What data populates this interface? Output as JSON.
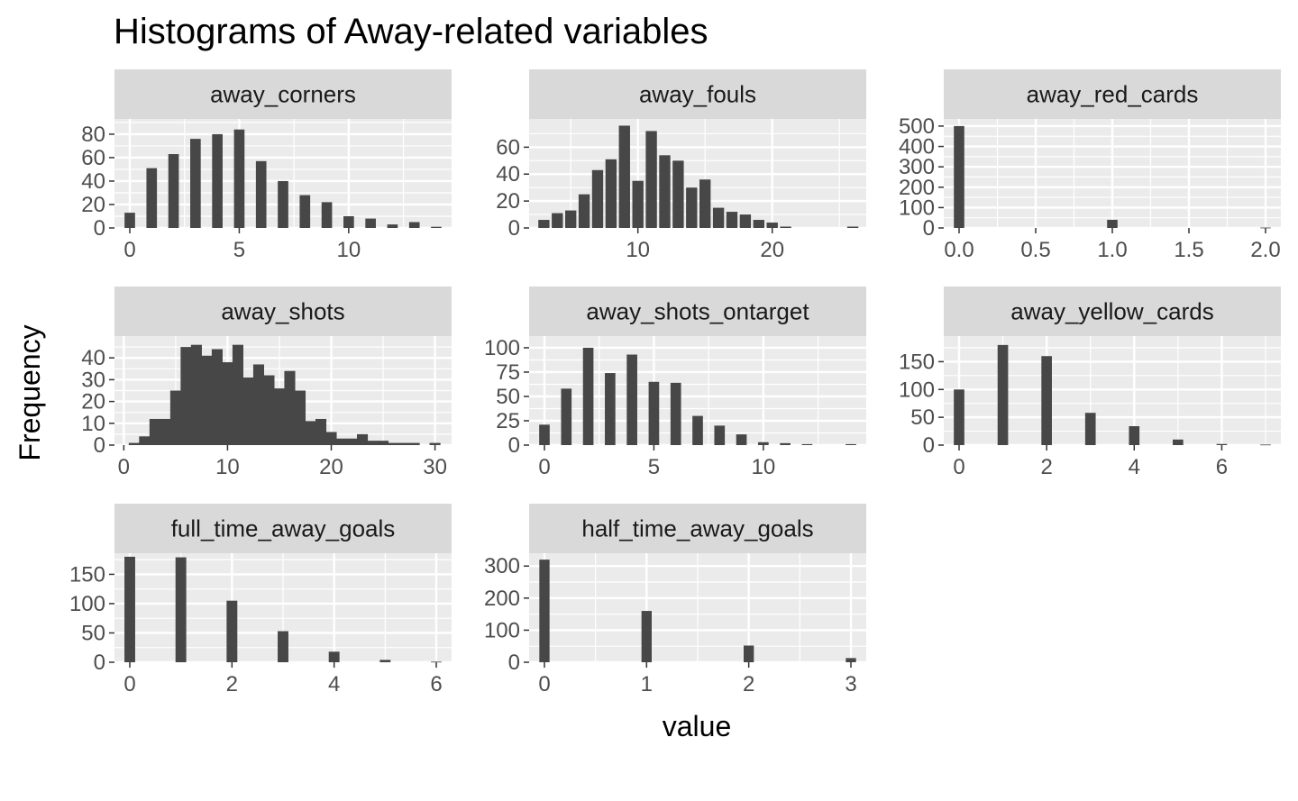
{
  "chart_data": {
    "type": "bar",
    "title": "Histograms of Away-related variables",
    "xlabel": "value",
    "ylabel": "Frequency",
    "colors": {
      "bar": "#474747",
      "panel_bg": "#ebebeb",
      "grid": "#ffffff",
      "strip_bg": "#d9d9d9",
      "strip_text": "#1a1a1a",
      "tick": "#4d4d4d"
    },
    "grid": true,
    "facets": [
      {
        "name": "away_corners",
        "xlim": [
          -0.7,
          14.7
        ],
        "ylim": [
          0,
          93
        ],
        "xticks": [
          0,
          5,
          10
        ],
        "xtick_labels": [
          "0",
          "5",
          "10"
        ],
        "yticks": [
          0,
          20,
          40,
          60,
          80
        ],
        "ytick_labels": [
          "0",
          "20",
          "40",
          "60",
          "80"
        ],
        "bar_width": 0.48,
        "bars": [
          {
            "x": 0,
            "y": 13
          },
          {
            "x": 1,
            "y": 51
          },
          {
            "x": 2,
            "y": 63
          },
          {
            "x": 3,
            "y": 76
          },
          {
            "x": 4,
            "y": 80
          },
          {
            "x": 5,
            "y": 84
          },
          {
            "x": 6,
            "y": 57
          },
          {
            "x": 7,
            "y": 40
          },
          {
            "x": 8,
            "y": 28
          },
          {
            "x": 9,
            "y": 22
          },
          {
            "x": 10,
            "y": 10
          },
          {
            "x": 11,
            "y": 8
          },
          {
            "x": 12,
            "y": 3
          },
          {
            "x": 13,
            "y": 5
          },
          {
            "x": 14,
            "y": 1
          }
        ]
      },
      {
        "name": "away_fouls",
        "xlim": [
          1.9,
          27.0
        ],
        "ylim": [
          0,
          81
        ],
        "xticks": [
          10,
          20
        ],
        "xtick_labels": [
          "10",
          "20"
        ],
        "yticks": [
          0,
          20,
          40,
          60
        ],
        "ytick_labels": [
          "0",
          "20",
          "40",
          "60"
        ],
        "bar_width": 0.83,
        "bars": [
          {
            "x": 3,
            "y": 6
          },
          {
            "x": 4,
            "y": 11
          },
          {
            "x": 5,
            "y": 13
          },
          {
            "x": 6,
            "y": 25
          },
          {
            "x": 7,
            "y": 43
          },
          {
            "x": 8,
            "y": 51
          },
          {
            "x": 9,
            "y": 76
          },
          {
            "x": 10,
            "y": 35
          },
          {
            "x": 11,
            "y": 72
          },
          {
            "x": 12,
            "y": 54
          },
          {
            "x": 13,
            "y": 50
          },
          {
            "x": 14,
            "y": 30
          },
          {
            "x": 15,
            "y": 36
          },
          {
            "x": 16,
            "y": 15
          },
          {
            "x": 17,
            "y": 12
          },
          {
            "x": 18,
            "y": 10
          },
          {
            "x": 19,
            "y": 6
          },
          {
            "x": 20,
            "y": 4
          },
          {
            "x": 21,
            "y": 1
          },
          {
            "x": 26,
            "y": 1
          }
        ]
      },
      {
        "name": "away_red_cards",
        "xlim": [
          -0.1,
          2.1
        ],
        "ylim": [
          0,
          535
        ],
        "xticks": [
          0.0,
          0.5,
          1.0,
          1.5,
          2.0
        ],
        "xtick_labels": [
          "0.0",
          "0.5",
          "1.0",
          "1.5",
          "2.0"
        ],
        "yticks": [
          0,
          100,
          200,
          300,
          400,
          500
        ],
        "ytick_labels": [
          "0",
          "100",
          "200",
          "300",
          "400",
          "500"
        ],
        "bar_width": 0.068,
        "bars": [
          {
            "x": 0,
            "y": 500
          },
          {
            "x": 1,
            "y": 40
          },
          {
            "x": 2,
            "y": 2
          }
        ]
      },
      {
        "name": "away_shots",
        "xlim": [
          -0.9,
          31.6
        ],
        "ylim": [
          0,
          50
        ],
        "xticks": [
          0,
          10,
          20,
          30
        ],
        "xtick_labels": [
          "0",
          "10",
          "20",
          "30"
        ],
        "yticks": [
          0,
          10,
          20,
          30,
          40
        ],
        "ytick_labels": [
          "0",
          "10",
          "20",
          "30",
          "40"
        ],
        "bar_width": 1.05,
        "bars": [
          {
            "x": 1,
            "y": 1
          },
          {
            "x": 2,
            "y": 4
          },
          {
            "x": 3,
            "y": 12
          },
          {
            "x": 4,
            "y": 12
          },
          {
            "x": 5,
            "y": 25
          },
          {
            "x": 6,
            "y": 45
          },
          {
            "x": 7,
            "y": 46
          },
          {
            "x": 8,
            "y": 41
          },
          {
            "x": 9,
            "y": 44
          },
          {
            "x": 10,
            "y": 38
          },
          {
            "x": 11,
            "y": 46
          },
          {
            "x": 12,
            "y": 31
          },
          {
            "x": 13,
            "y": 37
          },
          {
            "x": 14,
            "y": 32
          },
          {
            "x": 15,
            "y": 26
          },
          {
            "x": 16,
            "y": 34
          },
          {
            "x": 17,
            "y": 25
          },
          {
            "x": 18,
            "y": 11
          },
          {
            "x": 19,
            "y": 12
          },
          {
            "x": 20,
            "y": 6
          },
          {
            "x": 21,
            "y": 3
          },
          {
            "x": 22,
            "y": 3
          },
          {
            "x": 23,
            "y": 5
          },
          {
            "x": 24,
            "y": 2
          },
          {
            "x": 25,
            "y": 2
          },
          {
            "x": 26,
            "y": 1
          },
          {
            "x": 27,
            "y": 1
          },
          {
            "x": 28,
            "y": 1
          },
          {
            "x": 30,
            "y": 1
          }
        ]
      },
      {
        "name": "away_shots_ontarget",
        "xlim": [
          -0.7,
          14.7
        ],
        "ylim": [
          0,
          112
        ],
        "xticks": [
          0,
          5,
          10
        ],
        "xtick_labels": [
          "0",
          "5",
          "10"
        ],
        "yticks": [
          0,
          25,
          50,
          75,
          100
        ],
        "ytick_labels": [
          "0",
          "25",
          "50",
          "75",
          "100"
        ],
        "bar_width": 0.48,
        "bars": [
          {
            "x": 0,
            "y": 21
          },
          {
            "x": 1,
            "y": 58
          },
          {
            "x": 2,
            "y": 100
          },
          {
            "x": 3,
            "y": 74
          },
          {
            "x": 4,
            "y": 93
          },
          {
            "x": 5,
            "y": 65
          },
          {
            "x": 6,
            "y": 64
          },
          {
            "x": 7,
            "y": 30
          },
          {
            "x": 8,
            "y": 20
          },
          {
            "x": 9,
            "y": 11
          },
          {
            "x": 10,
            "y": 3
          },
          {
            "x": 11,
            "y": 2
          },
          {
            "x": 12,
            "y": 1
          },
          {
            "x": 14,
            "y": 1
          }
        ]
      },
      {
        "name": "away_yellow_cards",
        "xlim": [
          -0.35,
          7.35
        ],
        "ylim": [
          0,
          196
        ],
        "xticks": [
          0,
          2,
          4,
          6
        ],
        "xtick_labels": [
          "0",
          "2",
          "4",
          "6"
        ],
        "yticks": [
          0,
          50,
          100,
          150
        ],
        "ytick_labels": [
          "0",
          "50",
          "100",
          "150"
        ],
        "bar_width": 0.24,
        "bars": [
          {
            "x": 0,
            "y": 100
          },
          {
            "x": 1,
            "y": 180
          },
          {
            "x": 2,
            "y": 160
          },
          {
            "x": 3,
            "y": 58
          },
          {
            "x": 4,
            "y": 34
          },
          {
            "x": 5,
            "y": 10
          },
          {
            "x": 6,
            "y": 2
          },
          {
            "x": 7,
            "y": 1
          }
        ]
      },
      {
        "name": "full_time_away_goals",
        "xlim": [
          -0.3,
          6.3
        ],
        "ylim": [
          0,
          186
        ],
        "xticks": [
          0,
          2,
          4,
          6
        ],
        "xtick_labels": [
          "0",
          "2",
          "4",
          "6"
        ],
        "yticks": [
          0,
          50,
          100,
          150
        ],
        "ytick_labels": [
          "0",
          "50",
          "100",
          "150"
        ],
        "bar_width": 0.21,
        "bars": [
          {
            "x": 0,
            "y": 180
          },
          {
            "x": 1,
            "y": 179
          },
          {
            "x": 2,
            "y": 105
          },
          {
            "x": 3,
            "y": 53
          },
          {
            "x": 4,
            "y": 18
          },
          {
            "x": 5,
            "y": 4
          },
          {
            "x": 6,
            "y": 1
          }
        ]
      },
      {
        "name": "half_time_away_goals",
        "xlim": [
          -0.15,
          3.15
        ],
        "ylim": [
          0,
          340
        ],
        "xticks": [
          0,
          1,
          2,
          3
        ],
        "xtick_labels": [
          "0",
          "1",
          "2",
          "3"
        ],
        "yticks": [
          0,
          100,
          200,
          300
        ],
        "ytick_labels": [
          "0",
          "100",
          "200",
          "300"
        ],
        "bar_width": 0.1,
        "bars": [
          {
            "x": 0,
            "y": 320
          },
          {
            "x": 1,
            "y": 160
          },
          {
            "x": 2,
            "y": 52
          },
          {
            "x": 3,
            "y": 13
          }
        ]
      }
    ]
  }
}
